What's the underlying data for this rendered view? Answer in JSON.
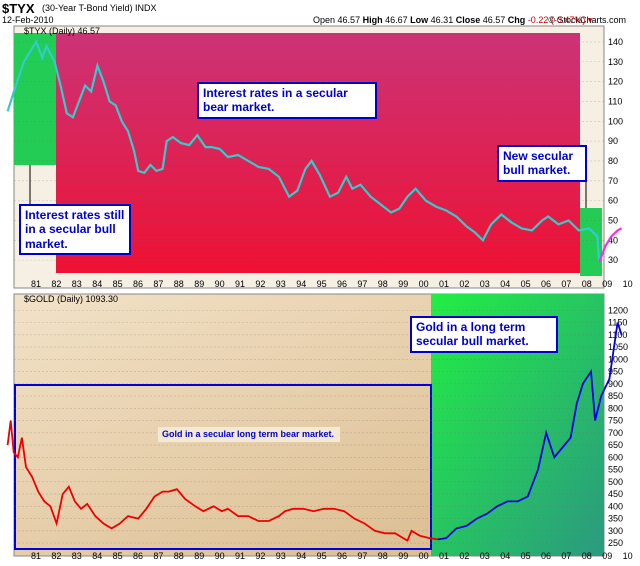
{
  "header": {
    "symbol": "$TYX",
    "subtitle": "(30-Year T-Bond Yield) INDX",
    "date": "12-Feb-2010",
    "brand": "© StockCharts.com",
    "open_label": "Open",
    "open": "46.57",
    "high_label": "High",
    "high": "46.67",
    "low_label": "Low",
    "low": "46.31",
    "close_label": "Close",
    "close": "46.57",
    "chg_label": "Chg",
    "chg": "-0.22 (-0.47%)"
  },
  "colors": {
    "tyx_line": "#33cccc",
    "tyx_bg_top": "#cc3377",
    "tyx_bg_bottom": "#ee1133",
    "green_zone": "#22cc55",
    "gold_red": "#ee0000",
    "gold_blue": "#0000dd",
    "gold_bg": "#ead6b8",
    "annotation": "#0000cc",
    "highlight_magenta": "#ee33ee"
  },
  "annotations": {
    "tyx_bear": "Interest rates in a secular bear market.",
    "tyx_bull_old": "Interest rates still in a secular bull market.",
    "tyx_bull_new": "New secular bull market.",
    "gold_bull": "Gold in a long term secular bull market.",
    "gold_bear": "Gold in a secular long term bear market."
  },
  "chart_data": [
    {
      "type": "line",
      "legend": "$TYX (Daily) 46.57",
      "x_ticks": [
        "81",
        "82",
        "83",
        "84",
        "85",
        "86",
        "87",
        "88",
        "89",
        "90",
        "91",
        "92",
        "93",
        "94",
        "95",
        "96",
        "97",
        "98",
        "99",
        "00",
        "01",
        "02",
        "03",
        "04",
        "05",
        "06",
        "07",
        "08",
        "09",
        "10"
      ],
      "y_ticks": [
        30,
        40,
        50,
        60,
        70,
        80,
        90,
        100,
        110,
        120,
        130,
        140
      ],
      "ylim": [
        22,
        145
      ],
      "x": [
        1980.0,
        1980.4,
        1980.8,
        1981.1,
        1981.4,
        1981.7,
        1981.9,
        1982.3,
        1982.6,
        1982.9,
        1983.2,
        1983.5,
        1983.8,
        1984.1,
        1984.4,
        1984.7,
        1985.0,
        1985.3,
        1985.6,
        1985.9,
        1986.2,
        1986.4,
        1986.7,
        1987.0,
        1987.3,
        1987.6,
        1987.8,
        1988.1,
        1988.5,
        1988.9,
        1989.3,
        1989.7,
        1990.0,
        1990.4,
        1990.8,
        1991.3,
        1991.8,
        1992.3,
        1992.8,
        1993.3,
        1993.8,
        1994.2,
        1994.6,
        1994.9,
        1995.3,
        1995.8,
        1996.2,
        1996.6,
        1996.9,
        1997.3,
        1997.8,
        1998.3,
        1998.8,
        1999.2,
        1999.6,
        2000.0,
        2000.5,
        2001.0,
        2001.5,
        2002.0,
        2002.5,
        2002.9,
        2003.3,
        2003.7,
        2004.2,
        2004.7,
        2005.2,
        2005.7,
        2006.2,
        2006.5,
        2007.0,
        2007.5,
        2008.0,
        2008.5,
        2008.9,
        2009.0,
        2009.3,
        2009.6,
        2009.9,
        2010.1
      ],
      "y": [
        105,
        118,
        130,
        135,
        140,
        132,
        138,
        130,
        118,
        104,
        102,
        110,
        118,
        115,
        128,
        120,
        110,
        108,
        100,
        95,
        85,
        75,
        74,
        78,
        75,
        76,
        90,
        92,
        89,
        88,
        93,
        87,
        87,
        86,
        82,
        83,
        80,
        77,
        76,
        72,
        62,
        65,
        76,
        80,
        73,
        62,
        64,
        72,
        66,
        68,
        62,
        58,
        54,
        56,
        62,
        66,
        60,
        57,
        55,
        52,
        47,
        44,
        40,
        48,
        53,
        49,
        46,
        45,
        50,
        52,
        48,
        50,
        45,
        46,
        42,
        29,
        37,
        42,
        45,
        46
      ],
      "series": [
        {
          "name": "",
          "color": "#33cccc"
        },
        {
          "name": "",
          "color": "#ee33ee"
        }
      ]
    },
    {
      "type": "line",
      "legend": "$GOLD (Daily) 1093.30",
      "x_ticks": [
        "81",
        "82",
        "83",
        "84",
        "85",
        "86",
        "87",
        "88",
        "89",
        "90",
        "91",
        "92",
        "93",
        "94",
        "95",
        "96",
        "97",
        "98",
        "99",
        "00",
        "01",
        "02",
        "03",
        "04",
        "05",
        "06",
        "07",
        "08",
        "09",
        "10"
      ],
      "y_ticks": [
        250,
        300,
        350,
        400,
        450,
        500,
        550,
        600,
        650,
        700,
        750,
        800,
        850,
        900,
        950,
        1000,
        1050,
        1100,
        1150,
        1200
      ],
      "ylim": [
        230,
        1250
      ],
      "x": [
        1980.0,
        1980.15,
        1980.3,
        1980.5,
        1980.7,
        1980.9,
        1981.2,
        1981.5,
        1981.8,
        1982.1,
        1982.4,
        1982.7,
        1983.0,
        1983.3,
        1983.6,
        1983.9,
        1984.3,
        1984.7,
        1985.1,
        1985.5,
        1985.9,
        1986.4,
        1986.8,
        1987.2,
        1987.6,
        1987.9,
        1988.3,
        1988.7,
        1989.2,
        1989.6,
        1990.1,
        1990.5,
        1990.8,
        1991.3,
        1991.8,
        1992.3,
        1992.8,
        1993.3,
        1993.6,
        1994.0,
        1994.5,
        1995.0,
        1995.5,
        1996.0,
        1996.5,
        1997.0,
        1997.5,
        1998.0,
        1998.5,
        1999.0,
        1999.6,
        1999.8,
        2000.2,
        2000.7,
        2001.1,
        2001.5,
        2002.0,
        2002.5,
        2003.0,
        2003.5,
        2004.0,
        2004.5,
        2005.0,
        2005.5,
        2006.0,
        2006.4,
        2006.8,
        2007.2,
        2007.6,
        2007.9,
        2008.2,
        2008.6,
        2008.8,
        2009.1,
        2009.5,
        2009.9,
        2010.1
      ],
      "y": [
        650,
        750,
        620,
        600,
        680,
        560,
        520,
        460,
        420,
        400,
        330,
        450,
        480,
        420,
        390,
        410,
        360,
        330,
        310,
        330,
        360,
        350,
        390,
        440,
        460,
        460,
        470,
        430,
        400,
        380,
        400,
        380,
        390,
        360,
        360,
        340,
        340,
        360,
        380,
        390,
        390,
        380,
        390,
        390,
        380,
        350,
        330,
        300,
        290,
        290,
        260,
        300,
        280,
        270,
        265,
        270,
        310,
        320,
        350,
        370,
        400,
        420,
        420,
        440,
        550,
        700,
        600,
        640,
        680,
        820,
        900,
        950,
        750,
        850,
        920,
        1150,
        1100
      ],
      "series": [
        {
          "name": "",
          "color": "#ee0000"
        },
        {
          "name": "",
          "color": "#0000dd"
        }
      ]
    }
  ]
}
